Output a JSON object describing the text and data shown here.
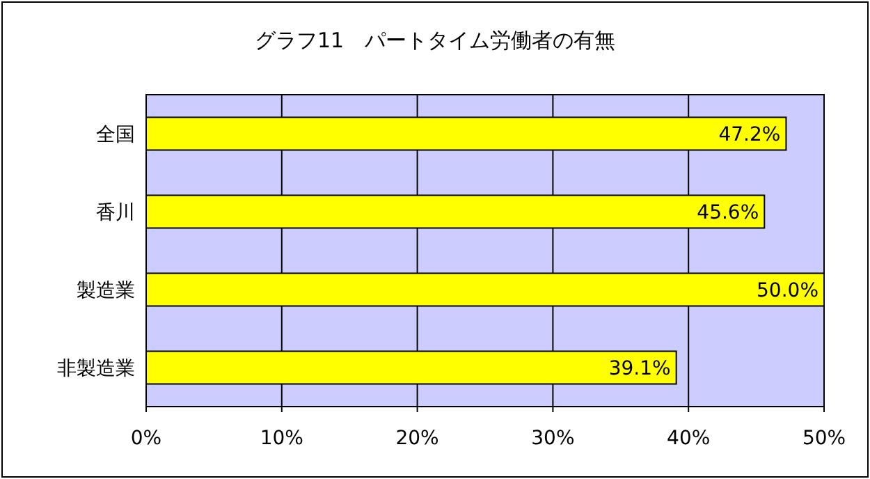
{
  "chart_data": {
    "type": "bar",
    "orientation": "horizontal",
    "title": "グラフ11　パートタイム労働者の有無",
    "categories": [
      "全国",
      "香川",
      "製造業",
      "非製造業"
    ],
    "values": [
      47.2,
      45.6,
      50.0,
      39.1
    ],
    "value_labels": [
      "47.2%",
      "45.6%",
      "50.0%",
      "39.1%"
    ],
    "color": "#ffff00",
    "xlim": [
      0,
      50
    ],
    "xticks": [
      {
        "value": 0,
        "label": "0%"
      },
      {
        "value": 10,
        "label": "10%"
      },
      {
        "value": 20,
        "label": "20%"
      },
      {
        "value": 30,
        "label": "30%"
      },
      {
        "value": 40,
        "label": "40%"
      },
      {
        "value": 50,
        "label": "50%"
      }
    ],
    "grid": "x"
  }
}
